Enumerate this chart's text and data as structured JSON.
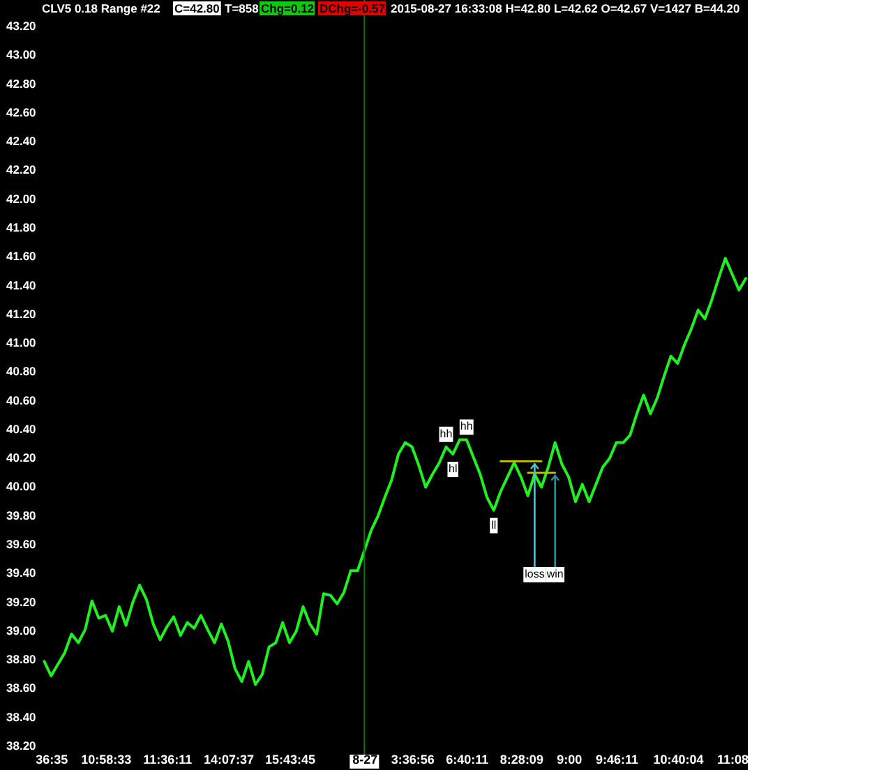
{
  "chart_data": {
    "type": "line",
    "title": "CLV5 0.18 Range #22",
    "annotations": [
      "C=42.80",
      "T=858",
      "Chg=0.12",
      "DChg=-0.57",
      "2015-08-27 16:33:08 H=42.80 L=42.62 O=42.67 V=1427 B=44.20"
    ],
    "categories": [
      null,
      "36:35",
      null,
      null,
      null,
      null,
      null,
      null,
      null,
      "10:58:33",
      null,
      null,
      null,
      null,
      null,
      null,
      null,
      null,
      "11:36:11",
      null,
      null,
      null,
      null,
      null,
      null,
      null,
      null,
      "14:07:37",
      null,
      null,
      null,
      null,
      null,
      null,
      null,
      null,
      "15:43:45",
      null,
      null,
      null,
      null,
      null,
      null,
      null,
      null,
      null,
      null,
      "8-27",
      null,
      null,
      null,
      null,
      null,
      null,
      "3:36:56",
      null,
      null,
      null,
      null,
      null,
      null,
      null,
      "6:40:11",
      null,
      null,
      null,
      null,
      null,
      null,
      null,
      "8:28:09",
      null,
      null,
      null,
      null,
      null,
      null,
      "9:00",
      null,
      null,
      null,
      null,
      null,
      null,
      "9:46:11",
      null,
      null,
      null,
      null,
      null,
      null,
      null,
      null,
      "10:40:04",
      null,
      null,
      null,
      null,
      null,
      null,
      null,
      "11:08",
      null,
      null
    ],
    "ylim": [
      38.2,
      43.2
    ],
    "yticks": [
      {
        "value": 38.2,
        "label": "38.20"
      },
      {
        "value": 38.4,
        "label": "38.40"
      },
      {
        "value": 38.6,
        "label": "38.60"
      },
      {
        "value": 38.8,
        "label": "38.80"
      },
      {
        "value": 39.0,
        "label": "39.00"
      },
      {
        "value": 39.2,
        "label": "39.20"
      },
      {
        "value": 39.4,
        "label": "39.40"
      },
      {
        "value": 39.6,
        "label": "39.60"
      },
      {
        "value": 39.8,
        "label": "39.80"
      },
      {
        "value": 40.0,
        "label": "40.00"
      },
      {
        "value": 40.2,
        "label": "40.20"
      },
      {
        "value": 40.4,
        "label": "40.40"
      },
      {
        "value": 40.6,
        "label": "40.60"
      },
      {
        "value": 40.8,
        "label": "40.80"
      },
      {
        "value": 41.0,
        "label": "41.00"
      },
      {
        "value": 41.2,
        "label": "41.20"
      },
      {
        "value": 41.4,
        "label": "41.40"
      },
      {
        "value": 41.6,
        "label": "41.60"
      },
      {
        "value": 41.8,
        "label": "41.80"
      },
      {
        "value": 42.0,
        "label": "42.00"
      },
      {
        "value": 42.2,
        "label": "42.20"
      },
      {
        "value": 42.4,
        "label": "42.40"
      },
      {
        "value": 42.6,
        "label": "42.60"
      },
      {
        "value": 42.8,
        "label": "42.80"
      },
      {
        "value": 43.0,
        "label": "43.00"
      },
      {
        "value": 43.2,
        "label": "43.20"
      }
    ],
    "series": [
      {
        "color": "#20f020",
        "values": [
          38.78,
          38.68,
          38.76,
          38.84,
          38.97,
          38.91,
          39.0,
          39.2,
          39.08,
          39.1,
          38.99,
          39.16,
          39.03,
          39.19,
          39.31,
          39.21,
          39.04,
          38.93,
          39.02,
          39.09,
          38.96,
          39.05,
          39.01,
          39.1,
          39.0,
          38.91,
          39.04,
          38.92,
          38.73,
          38.64,
          38.78,
          38.62,
          38.69,
          38.88,
          38.91,
          39.05,
          38.91,
          38.99,
          39.16,
          39.04,
          38.97,
          39.25,
          39.24,
          39.18,
          39.26,
          39.41,
          39.41,
          39.55,
          39.69,
          39.79,
          39.92,
          40.04,
          40.22,
          40.3,
          40.27,
          40.14,
          39.99,
          40.08,
          40.16,
          40.27,
          40.22,
          40.32,
          40.32,
          40.2,
          40.08,
          39.92,
          39.83,
          39.96,
          40.06,
          40.16,
          40.06,
          39.93,
          40.08,
          39.99,
          40.13,
          40.3,
          40.15,
          40.06,
          39.89,
          40.01,
          39.89,
          40.01,
          40.13,
          40.19,
          40.3,
          40.3,
          40.35,
          40.5,
          40.63,
          40.5,
          40.61,
          40.76,
          40.9,
          40.85,
          40.98,
          41.09,
          41.22,
          41.16,
          41.29,
          41.44,
          41.58,
          41.47,
          41.36,
          41.44
        ],
        "value_labels": [
          null,
          null,
          null,
          null,
          null,
          null,
          null,
          null,
          null,
          null,
          null,
          null,
          null,
          null,
          null,
          null,
          null,
          null,
          null,
          null,
          null,
          null,
          null,
          null,
          null,
          null,
          null,
          null,
          null,
          null,
          null,
          null,
          null,
          null,
          null,
          null,
          null,
          null,
          null,
          null,
          null,
          null,
          null,
          null,
          null,
          null,
          null,
          null,
          null,
          null,
          null,
          null,
          null,
          null,
          null,
          null,
          null,
          null,
          null,
          "hh",
          "hl",
          null,
          "hh",
          null,
          null,
          null,
          "ll",
          null,
          null,
          null,
          null,
          null,
          null,
          null,
          null,
          null,
          null,
          null,
          null,
          null,
          null,
          null,
          null,
          null,
          null,
          null,
          null,
          null,
          null,
          null,
          null,
          null,
          null,
          null,
          null,
          null,
          null,
          null,
          null,
          null,
          null,
          null,
          null,
          null
        ]
      },
      {
        "color": "#c8c000",
        "values": [
          null,
          null,
          null,
          null,
          null,
          null,
          null,
          null,
          null,
          null,
          null,
          null,
          null,
          null,
          null,
          null,
          null,
          null,
          null,
          null,
          null,
          null,
          null,
          null,
          null,
          null,
          null,
          null,
          null,
          null,
          null,
          null,
          null,
          null,
          null,
          null,
          null,
          null,
          null,
          null,
          null,
          null,
          null,
          null,
          null,
          null,
          null,
          null,
          null,
          null,
          null,
          null,
          null,
          null,
          null,
          null,
          null,
          null,
          null,
          null,
          null,
          null,
          null,
          null,
          null,
          null,
          null,
          40.17,
          40.17,
          40.17,
          40.17,
          40.17,
          40.17,
          40.17,
          null,
          null,
          null,
          null,
          null,
          null,
          null,
          null,
          null,
          null,
          null,
          null,
          null,
          null,
          null,
          null,
          null,
          null,
          null,
          null,
          null,
          null,
          null,
          null,
          null,
          null,
          null,
          null,
          null,
          null
        ],
        "value_labels": [
          null,
          null,
          null,
          null,
          null,
          null,
          null,
          null,
          null,
          null,
          null,
          null,
          null,
          null,
          null,
          null,
          null,
          null,
          null,
          null,
          null,
          null,
          null,
          null,
          null,
          null,
          null,
          null,
          null,
          null,
          null,
          null,
          null,
          null,
          null,
          null,
          null,
          null,
          null,
          null,
          null,
          null,
          null,
          null,
          null,
          null,
          null,
          null,
          null,
          null,
          null,
          null,
          null,
          null,
          null,
          null,
          null,
          null,
          null,
          null,
          null,
          null,
          null,
          null,
          null,
          null,
          null,
          null,
          null,
          null,
          null,
          null,
          "loss",
          null,
          null,
          null,
          null,
          null,
          null,
          null,
          null,
          null,
          null,
          null,
          null,
          null,
          null,
          null,
          null,
          null,
          null,
          null,
          null,
          null,
          null,
          null,
          null,
          null,
          null,
          null,
          null,
          null,
          null,
          null
        ]
      },
      {
        "color": "#c8c000",
        "values": [
          null,
          null,
          null,
          null,
          null,
          null,
          null,
          null,
          null,
          null,
          null,
          null,
          null,
          null,
          null,
          null,
          null,
          null,
          null,
          null,
          null,
          null,
          null,
          null,
          null,
          null,
          null,
          null,
          null,
          null,
          null,
          null,
          null,
          null,
          null,
          null,
          null,
          null,
          null,
          null,
          null,
          null,
          null,
          null,
          null,
          null,
          null,
          null,
          null,
          null,
          null,
          null,
          null,
          null,
          null,
          null,
          null,
          null,
          null,
          null,
          null,
          null,
          null,
          null,
          null,
          null,
          null,
          null,
          null,
          null,
          null,
          40.09,
          40.09,
          40.09,
          40.09,
          40.09,
          null,
          null,
          null,
          null,
          null,
          null,
          null,
          null,
          null,
          null,
          null,
          null,
          null,
          null,
          null,
          null,
          null,
          null,
          null,
          null,
          null,
          null,
          null,
          null,
          null,
          null,
          null,
          null
        ],
        "value_labels": [
          null,
          null,
          null,
          null,
          null,
          null,
          null,
          null,
          null,
          null,
          null,
          null,
          null,
          null,
          null,
          null,
          null,
          null,
          null,
          null,
          null,
          null,
          null,
          null,
          null,
          null,
          null,
          null,
          null,
          null,
          null,
          null,
          null,
          null,
          null,
          null,
          null,
          null,
          null,
          null,
          null,
          null,
          null,
          null,
          null,
          null,
          null,
          null,
          null,
          null,
          null,
          null,
          null,
          null,
          null,
          null,
          null,
          null,
          null,
          null,
          null,
          null,
          null,
          null,
          null,
          null,
          null,
          null,
          null,
          null,
          null,
          null,
          null,
          null,
          null,
          "win",
          null,
          null,
          null,
          null,
          null,
          null,
          null,
          null,
          null,
          null,
          null,
          null,
          null,
          null,
          null,
          null,
          null,
          null,
          null,
          null,
          null,
          null,
          null,
          null,
          null,
          null,
          null,
          null
        ]
      }
    ],
    "ref_lines": [
      {
        "axis": "x",
        "value": "8-27",
        "color": "#007a00"
      }
    ]
  }
}
